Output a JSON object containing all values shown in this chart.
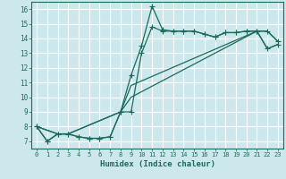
{
  "xlabel": "Humidex (Indice chaleur)",
  "bg_color": "#cde8ec",
  "grid_color": "#ffffff",
  "line_color": "#1a6b5a",
  "xlim": [
    -0.5,
    23.5
  ],
  "ylim": [
    6.5,
    16.5
  ],
  "xticks": [
    0,
    1,
    2,
    3,
    4,
    5,
    6,
    7,
    8,
    9,
    10,
    11,
    12,
    13,
    14,
    15,
    16,
    17,
    18,
    19,
    20,
    21,
    22,
    23
  ],
  "yticks": [
    7,
    8,
    9,
    10,
    11,
    12,
    13,
    14,
    15,
    16
  ],
  "line1_x": [
    0,
    1,
    2,
    3,
    4,
    5,
    6,
    7,
    8,
    9,
    10,
    11,
    12,
    13,
    14,
    15,
    16,
    17,
    18,
    19,
    20,
    21,
    22,
    23
  ],
  "line1_y": [
    8.0,
    7.0,
    7.5,
    7.5,
    7.3,
    7.2,
    7.2,
    7.3,
    9.0,
    11.5,
    13.5,
    16.2,
    14.6,
    14.5,
    14.5,
    14.5,
    14.3,
    14.1,
    14.4,
    14.4,
    14.5,
    14.5,
    14.5,
    13.8
  ],
  "line2_x": [
    0,
    1,
    2,
    3,
    4,
    5,
    6,
    7,
    8,
    9,
    10,
    11,
    12,
    13,
    14,
    15,
    16,
    17,
    18,
    19,
    20,
    21,
    22,
    23
  ],
  "line2_y": [
    8.0,
    7.0,
    7.5,
    7.5,
    7.3,
    7.2,
    7.2,
    7.3,
    9.0,
    9.0,
    13.0,
    14.8,
    14.5,
    14.5,
    14.5,
    14.5,
    14.3,
    14.1,
    14.4,
    14.4,
    14.5,
    14.5,
    13.3,
    13.6
  ],
  "line3_x": [
    0,
    2,
    3,
    8,
    9,
    21,
    22,
    23
  ],
  "line3_y": [
    8.0,
    7.5,
    7.5,
    9.0,
    10.0,
    14.5,
    13.3,
    13.6
  ],
  "line4_x": [
    0,
    2,
    3,
    8,
    9,
    21,
    22,
    23
  ],
  "line4_y": [
    8.0,
    7.5,
    7.5,
    9.0,
    10.8,
    14.5,
    14.5,
    13.8
  ]
}
